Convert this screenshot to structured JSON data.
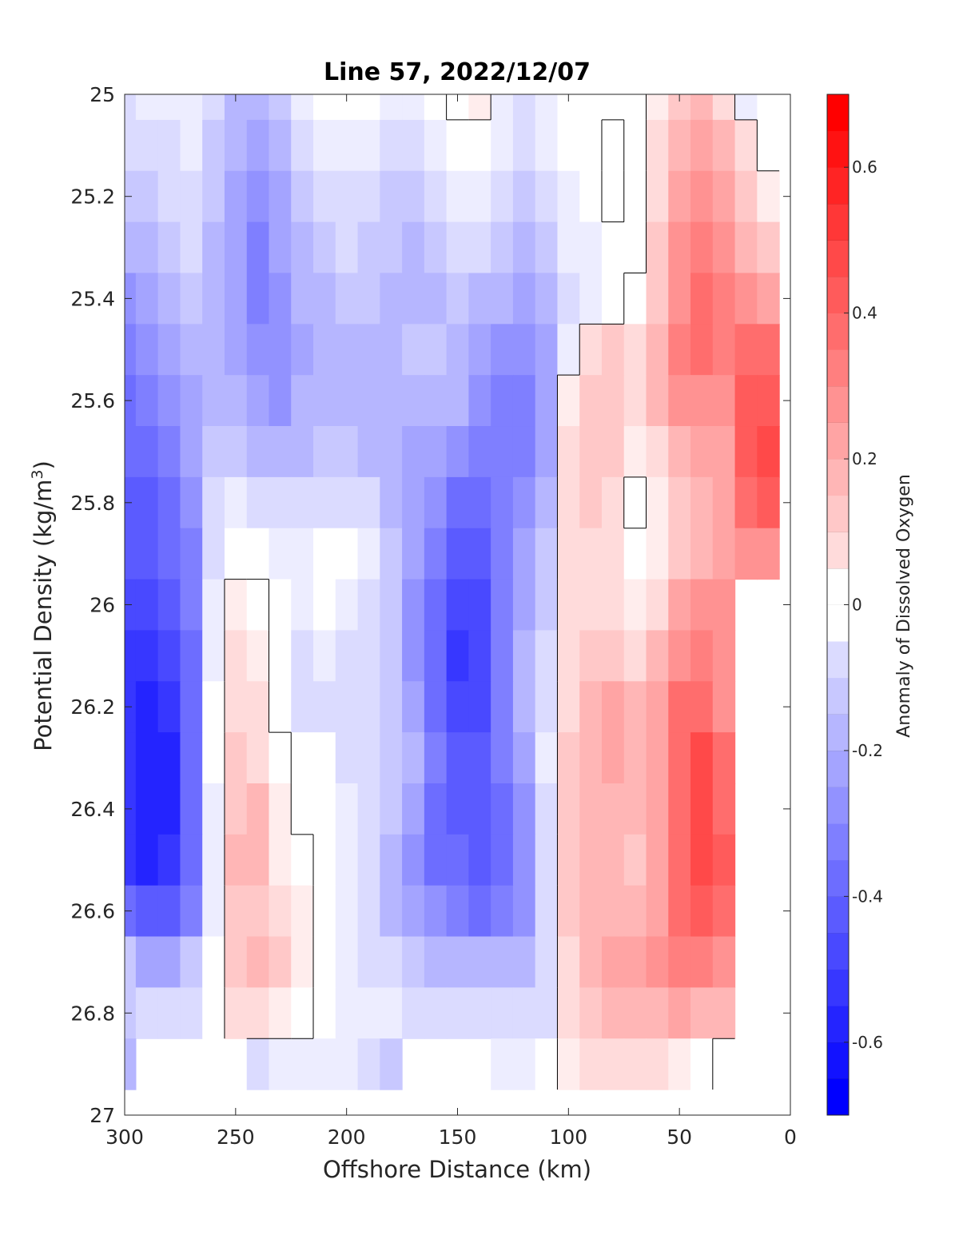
{
  "chart_data": {
    "type": "heatmap",
    "title": "Line 57, 2022/12/07",
    "xlabel": "Offshore Distance (km)",
    "ylabel": {
      "text": "Potential Density (kg/m",
      "sup": "3",
      "end": ")"
    },
    "colorbar_label": "Anomaly of Dissolved Oxygen",
    "xlim": [
      300,
      0
    ],
    "ylim": [
      27,
      25
    ],
    "x_reversed": true,
    "y_reversed": true,
    "x_ticks": [
      300,
      250,
      200,
      150,
      100,
      50,
      0
    ],
    "x_tick_labels": [
      "300",
      "250",
      "200",
      "150",
      "100",
      "50",
      "0"
    ],
    "y_ticks": [
      25,
      25.2,
      25.4,
      25.6,
      25.8,
      26,
      26.2,
      26.4,
      26.6,
      26.8,
      27
    ],
    "y_tick_labels": [
      "25",
      "25.2",
      "25.4",
      "25.6",
      "25.8",
      "26",
      "26.2",
      "26.4",
      "26.6",
      "26.8",
      "27"
    ],
    "colorbar": {
      "clim": [
        -0.7,
        0.7
      ],
      "level_step": 0.05,
      "ticks": [
        -0.6,
        -0.4,
        -0.2,
        0,
        0.2,
        0.4,
        0.6
      ],
      "tick_labels": [
        "-0.6",
        "-0.4",
        "-0.2",
        "0",
        "0.2",
        "0.4",
        "0.6"
      ],
      "colormap": {
        "negative": "#0000ff",
        "zero": "#ffffff",
        "positive": "#ff0000"
      }
    },
    "x": [
      300,
      290,
      280,
      270,
      260,
      250,
      240,
      230,
      220,
      210,
      200,
      190,
      180,
      170,
      160,
      150,
      140,
      130,
      120,
      110,
      100,
      90,
      80,
      70,
      60,
      50,
      40,
      30,
      20,
      10,
      0
    ],
    "y": [
      25.0,
      25.1,
      25.2,
      25.3,
      25.4,
      25.5,
      25.6,
      25.7,
      25.8,
      25.9,
      26.0,
      26.1,
      26.2,
      26.3,
      26.4,
      26.5,
      26.6,
      26.7,
      26.8,
      26.9,
      27.0
    ],
    "z_anomaly_estimated": [
      [
        -0.08,
        -0.06,
        -0.04,
        -0.03,
        -0.12,
        -0.18,
        -0.2,
        -0.14,
        -0.06,
        -0.02,
        0.0,
        -0.02,
        -0.06,
        -0.06,
        -0.02,
        0.02,
        0.03,
        -0.04,
        -0.08,
        -0.04,
        -0.01,
        -0.02,
        -0.02,
        -0.02,
        0.05,
        0.15,
        0.18,
        0.12,
        -0.05,
        -0.01,
        null
      ],
      [
        -0.1,
        -0.1,
        -0.08,
        -0.06,
        -0.15,
        -0.22,
        -0.26,
        -0.2,
        -0.12,
        -0.06,
        -0.04,
        -0.06,
        -0.1,
        -0.12,
        -0.06,
        0.0,
        -0.02,
        -0.06,
        -0.1,
        -0.06,
        -0.02,
        -0.01,
        0.01,
        -0.02,
        0.1,
        0.22,
        0.26,
        0.18,
        0.08,
        -0.02,
        null
      ],
      [
        -0.14,
        -0.14,
        -0.12,
        -0.1,
        -0.16,
        -0.24,
        -0.28,
        -0.24,
        -0.16,
        -0.1,
        -0.08,
        -0.1,
        -0.14,
        -0.16,
        -0.1,
        -0.04,
        -0.06,
        -0.1,
        -0.14,
        -0.1,
        -0.04,
        -0.02,
        0.02,
        0.0,
        0.12,
        0.26,
        0.32,
        0.24,
        0.14,
        0.06,
        null
      ],
      [
        -0.2,
        -0.22,
        -0.16,
        -0.12,
        -0.18,
        -0.26,
        -0.34,
        -0.26,
        -0.2,
        -0.14,
        -0.12,
        -0.14,
        -0.16,
        -0.18,
        -0.16,
        -0.1,
        -0.12,
        -0.16,
        -0.18,
        -0.14,
        -0.06,
        -0.04,
        -0.01,
        0.0,
        0.14,
        0.3,
        0.36,
        0.3,
        0.22,
        0.14,
        null
      ],
      [
        -0.28,
        -0.26,
        -0.2,
        -0.16,
        -0.2,
        -0.26,
        -0.34,
        -0.3,
        -0.22,
        -0.18,
        -0.16,
        -0.16,
        -0.18,
        -0.18,
        -0.18,
        -0.14,
        -0.18,
        -0.22,
        -0.24,
        -0.2,
        -0.1,
        -0.04,
        0.0,
        0.02,
        0.16,
        0.32,
        0.38,
        0.34,
        0.3,
        0.24,
        null
      ],
      [
        -0.34,
        -0.32,
        -0.24,
        -0.2,
        -0.2,
        -0.24,
        -0.3,
        -0.3,
        -0.24,
        -0.2,
        -0.2,
        -0.18,
        -0.18,
        -0.16,
        -0.16,
        -0.18,
        -0.26,
        -0.3,
        -0.3,
        -0.24,
        -0.04,
        0.1,
        0.14,
        0.08,
        0.18,
        0.34,
        0.38,
        0.34,
        0.4,
        0.4,
        null
      ],
      [
        -0.38,
        -0.36,
        -0.3,
        -0.24,
        -0.18,
        -0.2,
        -0.26,
        -0.28,
        -0.22,
        -0.18,
        -0.2,
        -0.2,
        -0.22,
        -0.2,
        -0.18,
        -0.22,
        -0.32,
        -0.34,
        -0.34,
        -0.26,
        0.06,
        0.16,
        0.16,
        0.08,
        0.18,
        0.3,
        0.32,
        0.3,
        0.44,
        0.46,
        null
      ],
      [
        -0.42,
        -0.4,
        -0.34,
        -0.26,
        -0.14,
        -0.14,
        -0.18,
        -0.2,
        -0.18,
        -0.14,
        -0.16,
        -0.18,
        -0.22,
        -0.24,
        -0.24,
        -0.3,
        -0.36,
        -0.36,
        -0.34,
        -0.24,
        0.08,
        0.16,
        0.16,
        0.04,
        0.1,
        0.2,
        0.24,
        0.26,
        0.44,
        0.48,
        null
      ],
      [
        -0.44,
        -0.44,
        -0.38,
        -0.3,
        -0.1,
        -0.06,
        -0.1,
        -0.12,
        -0.12,
        -0.08,
        -0.1,
        -0.12,
        -0.2,
        -0.26,
        -0.32,
        -0.38,
        -0.4,
        -0.36,
        -0.3,
        -0.2,
        0.08,
        0.14,
        0.12,
        0.0,
        0.04,
        0.16,
        0.22,
        0.24,
        0.4,
        0.44,
        null
      ],
      [
        -0.46,
        -0.46,
        -0.42,
        -0.34,
        -0.08,
        0.0,
        -0.02,
        -0.04,
        -0.04,
        0.0,
        -0.02,
        -0.06,
        -0.16,
        -0.26,
        -0.36,
        -0.44,
        -0.44,
        -0.36,
        -0.26,
        -0.16,
        0.08,
        0.12,
        0.08,
        0.01,
        0.04,
        0.16,
        0.22,
        0.24,
        0.32,
        0.3,
        null
      ],
      [
        -0.5,
        -0.52,
        -0.46,
        -0.36,
        -0.06,
        0.04,
        0.02,
        -0.02,
        -0.04,
        -0.02,
        -0.04,
        -0.08,
        -0.16,
        -0.28,
        -0.38,
        -0.5,
        -0.48,
        -0.36,
        -0.24,
        -0.14,
        0.08,
        0.12,
        0.1,
        0.06,
        0.12,
        0.24,
        0.3,
        0.3,
        null,
        null,
        null
      ],
      [
        -0.54,
        -0.56,
        -0.5,
        -0.38,
        -0.04,
        0.08,
        0.06,
        -0.02,
        -0.08,
        -0.06,
        -0.08,
        -0.1,
        -0.16,
        -0.28,
        -0.4,
        -0.54,
        -0.5,
        -0.36,
        -0.22,
        -0.12,
        0.1,
        0.16,
        0.16,
        0.12,
        0.18,
        0.32,
        0.36,
        0.3,
        null,
        null,
        null
      ],
      [
        -0.56,
        -0.6,
        -0.56,
        -0.4,
        -0.02,
        0.1,
        0.1,
        0.0,
        -0.08,
        -0.08,
        -0.1,
        -0.12,
        -0.16,
        -0.26,
        -0.38,
        -0.52,
        -0.48,
        -0.34,
        -0.2,
        -0.08,
        0.12,
        0.2,
        0.24,
        0.18,
        0.24,
        0.38,
        0.42,
        0.32,
        null,
        null,
        null
      ],
      [
        -0.56,
        -0.62,
        -0.58,
        -0.42,
        -0.02,
        0.14,
        0.12,
        0.02,
        -0.02,
        -0.02,
        -0.08,
        -0.12,
        -0.14,
        -0.22,
        -0.36,
        -0.46,
        -0.44,
        -0.34,
        -0.24,
        -0.06,
        0.14,
        0.22,
        0.26,
        0.2,
        0.26,
        0.42,
        0.48,
        0.38,
        null,
        null,
        null
      ],
      [
        -0.56,
        -0.62,
        -0.58,
        -0.42,
        -0.04,
        0.16,
        0.18,
        0.04,
        0.0,
        0.0,
        -0.06,
        -0.1,
        -0.14,
        -0.24,
        -0.38,
        -0.46,
        -0.44,
        -0.38,
        -0.3,
        -0.1,
        0.14,
        0.2,
        0.2,
        0.18,
        0.24,
        0.42,
        0.5,
        0.42,
        null,
        null,
        null
      ],
      [
        -0.54,
        -0.6,
        -0.56,
        -0.4,
        -0.04,
        0.18,
        0.18,
        0.06,
        0.02,
        0.0,
        -0.04,
        -0.12,
        -0.18,
        -0.28,
        -0.38,
        -0.42,
        -0.44,
        -0.4,
        -0.32,
        -0.12,
        0.14,
        0.2,
        0.18,
        0.16,
        0.24,
        0.42,
        0.5,
        0.44,
        null,
        null,
        null
      ],
      [
        -0.4,
        -0.46,
        -0.46,
        -0.34,
        -0.04,
        0.14,
        0.16,
        0.1,
        0.04,
        0.0,
        -0.04,
        -0.12,
        -0.18,
        -0.26,
        -0.32,
        -0.36,
        -0.38,
        -0.34,
        -0.28,
        -0.12,
        0.14,
        0.2,
        0.22,
        0.18,
        0.26,
        0.4,
        0.46,
        0.4,
        null,
        null,
        null
      ],
      [
        -0.16,
        -0.26,
        -0.24,
        -0.16,
        0.0,
        0.14,
        0.18,
        0.14,
        0.06,
        0.0,
        -0.04,
        -0.08,
        -0.1,
        -0.14,
        -0.18,
        -0.2,
        -0.22,
        -0.22,
        -0.2,
        -0.1,
        0.12,
        0.2,
        0.24,
        0.24,
        0.28,
        0.34,
        0.34,
        0.3,
        null,
        null,
        null
      ],
      [
        -0.14,
        -0.12,
        -0.12,
        -0.1,
        -0.02,
        0.08,
        0.1,
        0.06,
        0.02,
        0.0,
        -0.04,
        -0.06,
        -0.06,
        -0.08,
        -0.08,
        -0.1,
        -0.12,
        -0.12,
        -0.12,
        -0.08,
        0.08,
        0.16,
        0.2,
        0.22,
        0.22,
        0.24,
        0.22,
        0.18,
        null,
        null,
        null
      ],
      [
        -0.2,
        null,
        null,
        null,
        null,
        null,
        -0.08,
        -0.06,
        -0.04,
        -0.04,
        -0.06,
        -0.1,
        -0.16,
        null,
        null,
        null,
        null,
        -0.06,
        -0.04,
        -0.02,
        0.04,
        0.1,
        0.12,
        0.12,
        0.1,
        0.04,
        0.02,
        0.0,
        null,
        null,
        null
      ],
      [
        null,
        null,
        null,
        null,
        null,
        null,
        null,
        null,
        null,
        null,
        null,
        null,
        null,
        null,
        null,
        null,
        null,
        null,
        null,
        null,
        null,
        null,
        null,
        null,
        null,
        null,
        null,
        null,
        null,
        null,
        null
      ]
    ]
  },
  "colors": {
    "axes": "#262626",
    "contour_line": "#000000",
    "background": "#ffffff"
  }
}
